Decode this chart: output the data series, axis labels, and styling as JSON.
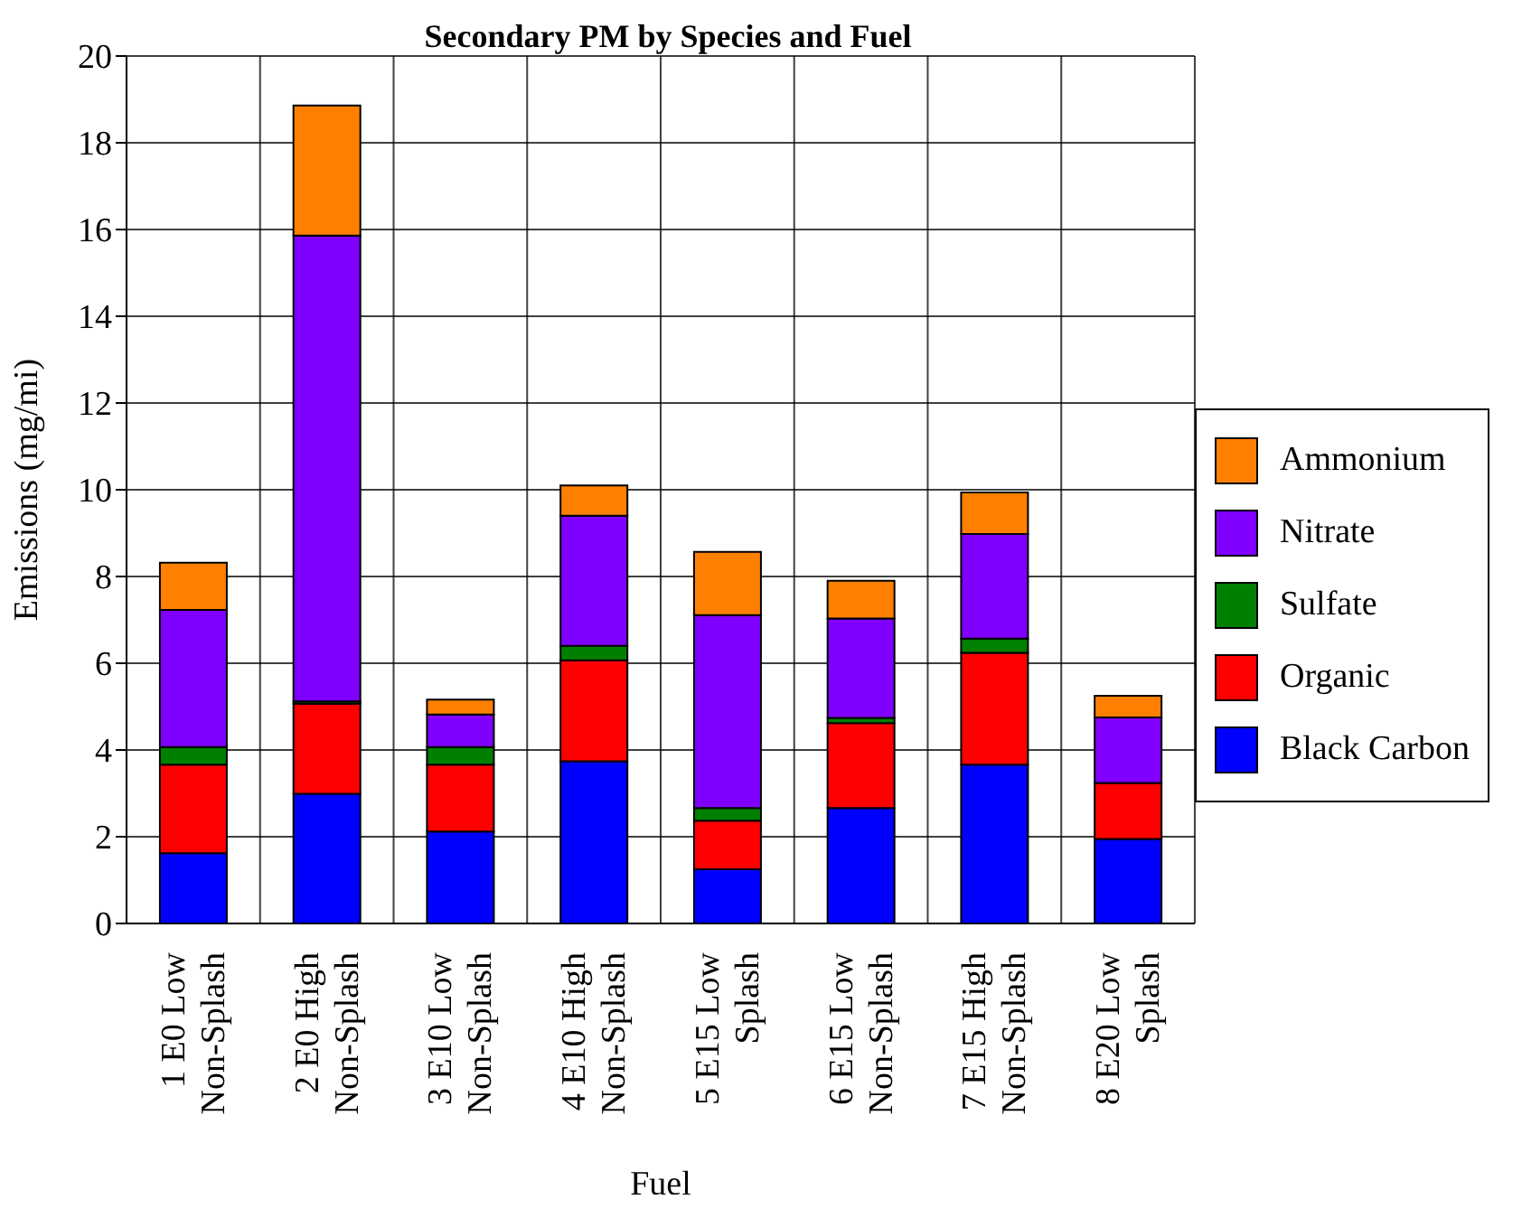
{
  "chart_data": {
    "type": "bar",
    "title": "Secondary PM by Species and Fuel",
    "xlabel": "Fuel",
    "ylabel": "Emissions (mg/mi)",
    "categories": [
      "1 E0 Low\nNon-Splash",
      "2 E0 High\nNon-Splash",
      "3 E10 Low\nNon-Splash",
      "4 E10 High\nNon-Splash",
      "5 E15 Low\nSplash",
      "6 E15 Low\nNon-Splash",
      "7 E15 High\nNon-Splash",
      "8 E20 Low\nSplash"
    ],
    "stacked": true,
    "series": [
      {
        "name": "Black Carbon",
        "color": "#0000ff",
        "values": [
          1.62,
          2.99,
          2.12,
          3.74,
          1.25,
          2.66,
          3.66,
          1.95
        ]
      },
      {
        "name": "Organic",
        "color": "#ff0000",
        "values": [
          2.04,
          2.08,
          1.54,
          2.33,
          1.12,
          1.96,
          2.58,
          1.29
        ]
      },
      {
        "name": "Sulfate",
        "color": "#008000",
        "values": [
          0.41,
          0.05,
          0.41,
          0.33,
          0.29,
          0.12,
          0.33,
          null
        ]
      },
      {
        "name": "Nitrate",
        "color": "#8000ff",
        "values": [
          3.16,
          10.74,
          0.75,
          3.0,
          4.45,
          2.29,
          2.41,
          1.51
        ]
      },
      {
        "name": "Ammonium",
        "color": "#ff8000",
        "values": [
          1.09,
          3.0,
          0.34,
          0.7,
          1.46,
          0.87,
          0.96,
          0.5
        ]
      }
    ],
    "ylim": [
      0,
      20
    ],
    "yticks": [
      0,
      2,
      4,
      6,
      8,
      10,
      12,
      14,
      16,
      18,
      20
    ],
    "grid": true,
    "legend": "right"
  }
}
